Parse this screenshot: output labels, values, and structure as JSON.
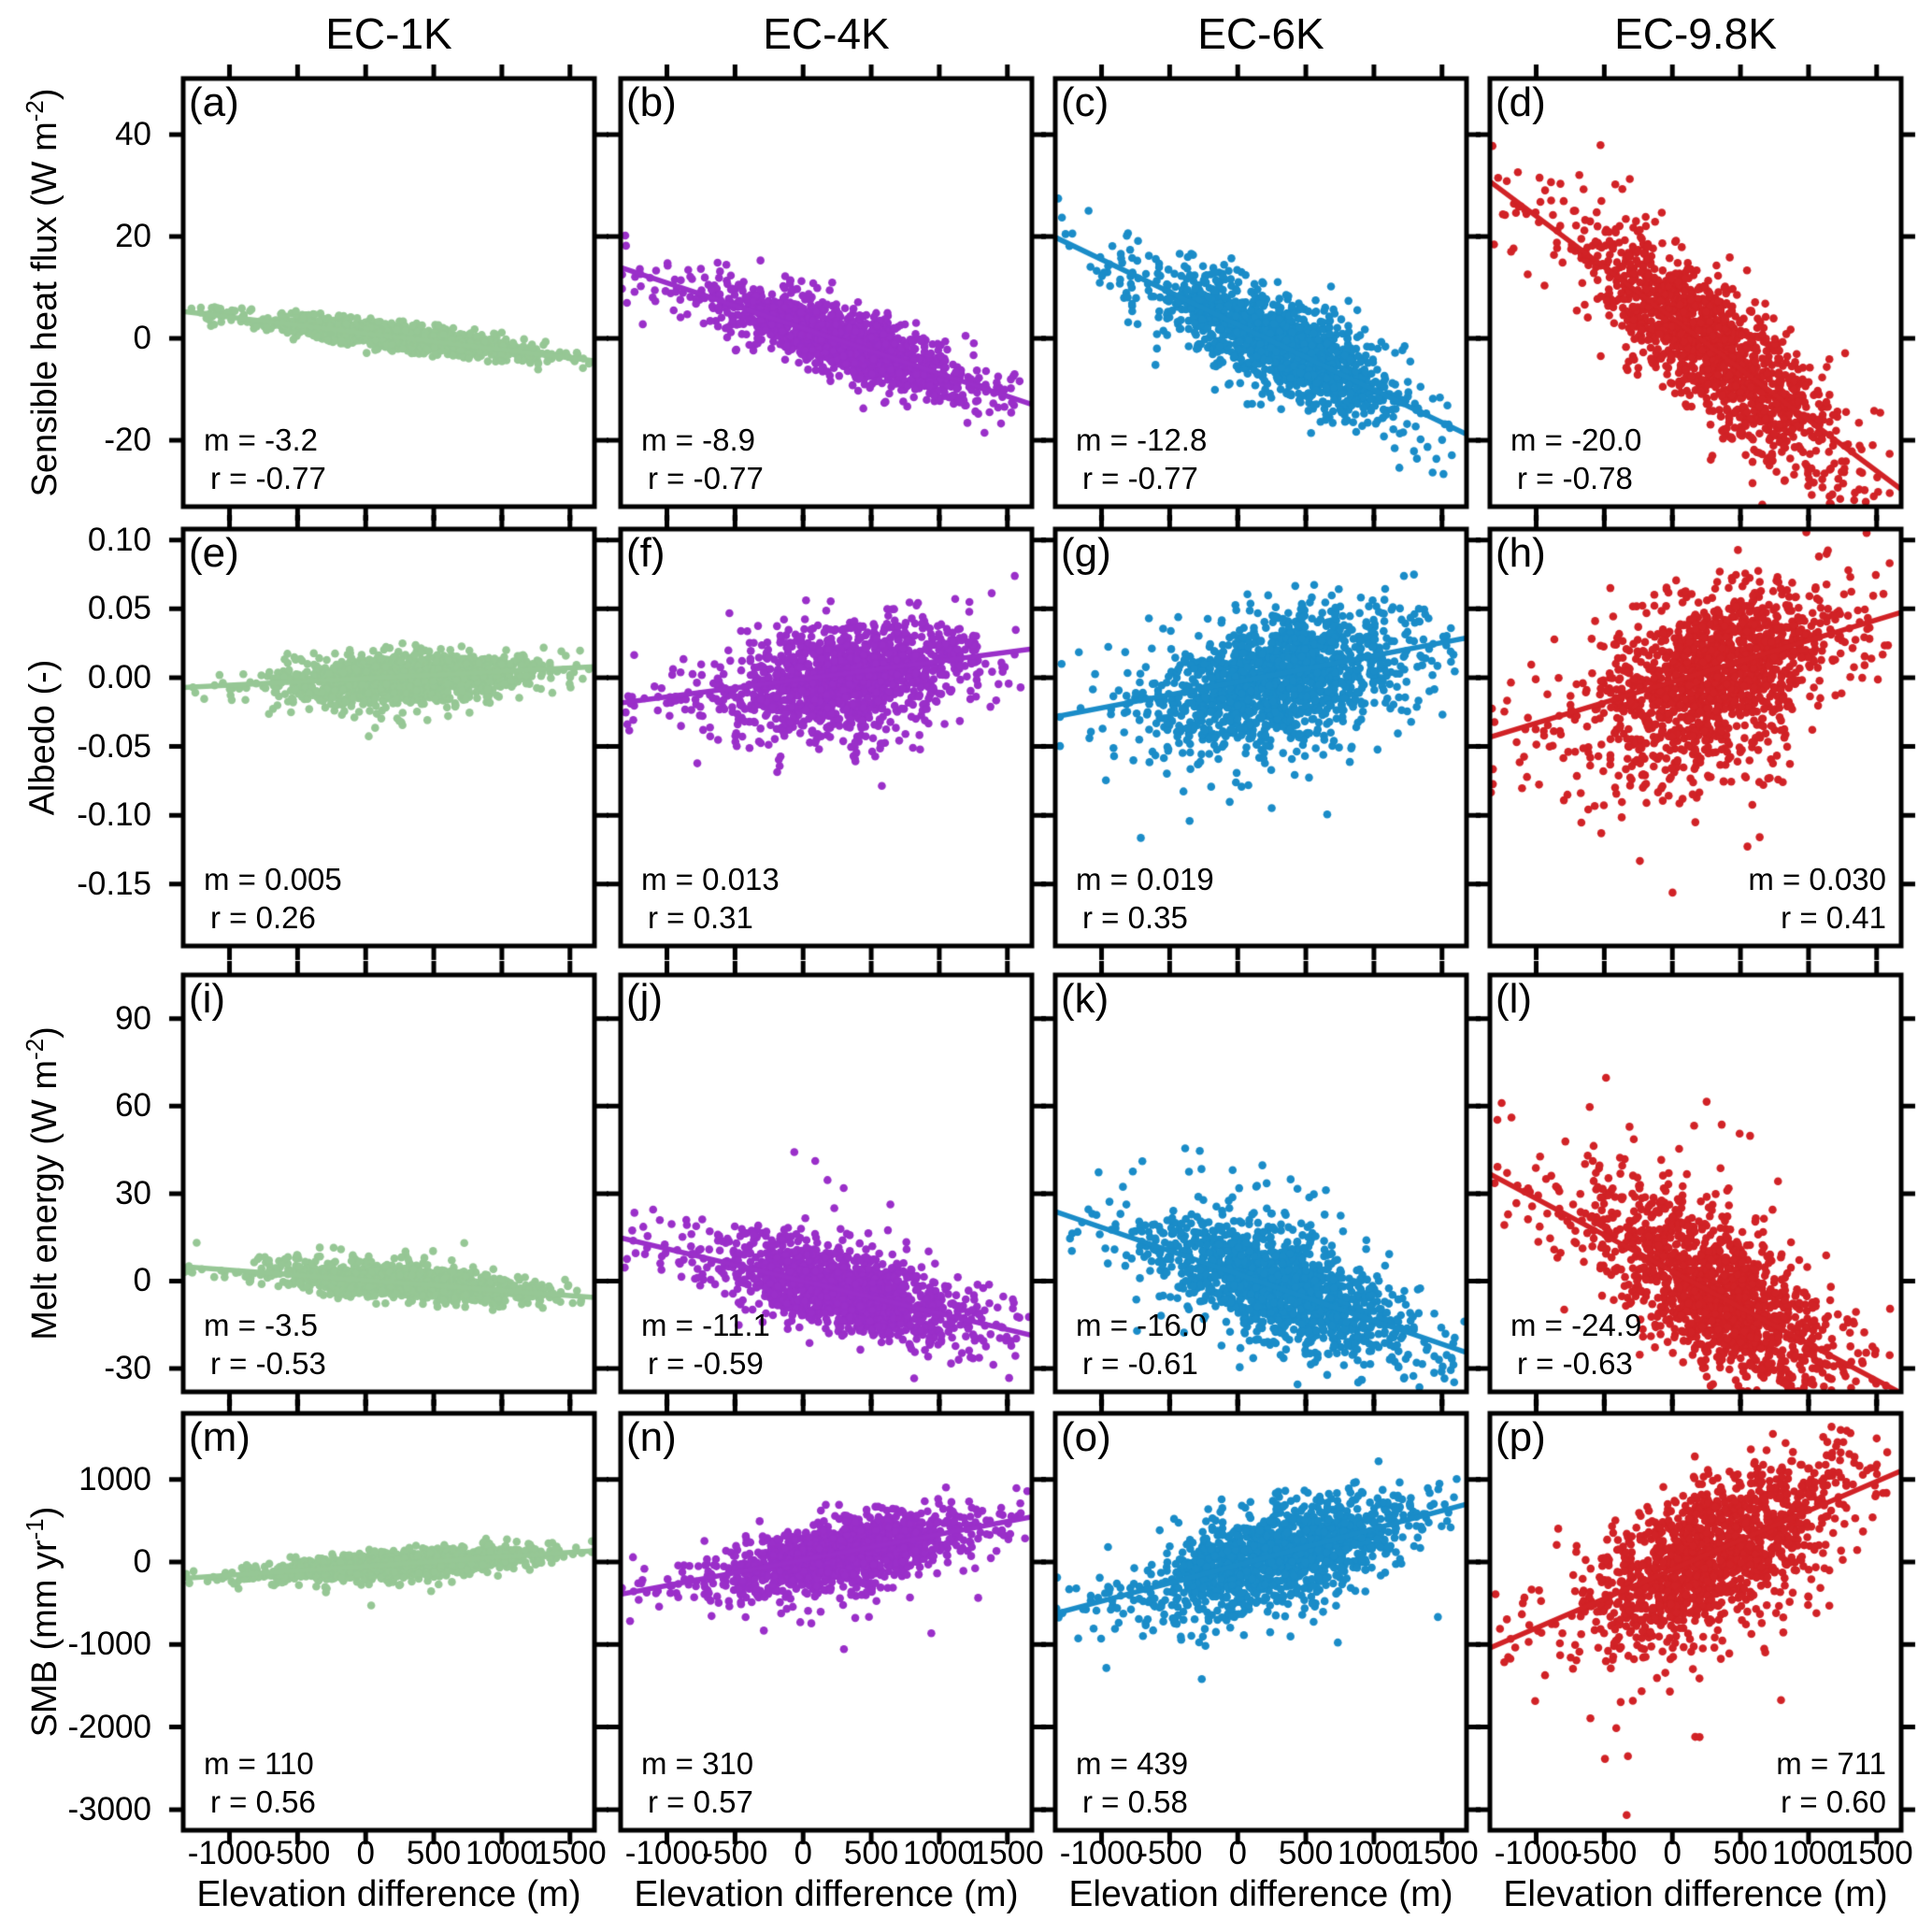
{
  "chart_data": {
    "type": "scatter",
    "grid": "4 rows x 4 columns",
    "x_axis": {
      "label": "Elevation difference (m)",
      "range": [
        -1340,
        1680
      ],
      "ticks": [
        -1000,
        -500,
        0,
        500,
        1000,
        1500
      ],
      "tick_labels": [
        "-1000",
        "-500",
        "0",
        "500",
        "1000",
        "1500"
      ]
    },
    "columns": [
      {
        "title": "EC-1K",
        "color": "#96c795"
      },
      {
        "title": "EC-4K",
        "color": "#9a2fc9"
      },
      {
        "title": "EC-6K",
        "color": "#1a8cc8"
      },
      {
        "title": "EC-9.8K",
        "color": "#d12226"
      }
    ],
    "rows": [
      {
        "ylabel": "Sensible heat flux (W m^-2)",
        "ylabel_pre": "Sensible heat flux (W m",
        "ylabel_sup": "-2",
        "ylabel_post": ")",
        "range": [
          -33,
          51
        ],
        "ticks": [
          40,
          20,
          0,
          -20
        ],
        "tick_labels": [
          "40",
          "20",
          "0",
          "-20"
        ]
      },
      {
        "ylabel": "Albedo (-)",
        "ylabel_pre": "Albedo (-)",
        "ylabel_sup": "",
        "ylabel_post": "",
        "range": [
          -0.195,
          0.108
        ],
        "ticks": [
          0.1,
          0.05,
          0.0,
          -0.05,
          -0.1,
          -0.15
        ],
        "tick_labels": [
          "0.10",
          "0.05",
          "0.00",
          "-0.05",
          "-0.10",
          "-0.15"
        ]
      },
      {
        "ylabel": "Melt energy (W m^-2)",
        "ylabel_pre": "Melt energy (W m",
        "ylabel_sup": "-2",
        "ylabel_post": ")",
        "range": [
          -38,
          105
        ],
        "ticks": [
          90,
          60,
          30,
          0,
          -30
        ],
        "tick_labels": [
          "90",
          "60",
          "30",
          "0",
          "-30"
        ]
      },
      {
        "ylabel": "SMB (mm yr^-1)",
        "ylabel_pre": "SMB (mm yr",
        "ylabel_sup": "-1",
        "ylabel_post": ")",
        "range": [
          -3250,
          1800
        ],
        "ticks": [
          1000,
          0,
          -1000,
          -2000,
          -3000
        ],
        "tick_labels": [
          "1000",
          "0",
          "-1000",
          "-2000",
          "-3000"
        ]
      }
    ],
    "panels": [
      {
        "label": "(a)",
        "row": 0,
        "col": 0,
        "m": -3.2,
        "r": -0.77,
        "m_text": "m = -3.2",
        "r_text": "r = -0.77",
        "intercept": 1.0,
        "anno_align": "left"
      },
      {
        "label": "(b)",
        "row": 0,
        "col": 1,
        "m": -8.9,
        "r": -0.77,
        "m_text": "m = -8.9",
        "r_text": "r = -0.77",
        "intercept": 2.0,
        "anno_align": "left"
      },
      {
        "label": "(c)",
        "row": 0,
        "col": 2,
        "m": -12.8,
        "r": -0.77,
        "m_text": "m = -12.8",
        "r_text": "r = -0.77",
        "intercept": 2.7,
        "anno_align": "left"
      },
      {
        "label": "(d)",
        "row": 0,
        "col": 3,
        "m": -20.0,
        "r": -0.78,
        "m_text": "m = -20.0",
        "r_text": "r = -0.78",
        "intercept": 4.0,
        "anno_align": "left"
      },
      {
        "label": "(e)",
        "row": 1,
        "col": 0,
        "m": 0.005,
        "r": 0.26,
        "m_text": "m = 0.005",
        "r_text": "r = 0.26",
        "intercept": -0.0005,
        "anno_align": "left"
      },
      {
        "label": "(f)",
        "row": 1,
        "col": 1,
        "m": 0.013,
        "r": 0.31,
        "m_text": "m = 0.013",
        "r_text": "r = 0.31",
        "intercept": -0.001,
        "anno_align": "left"
      },
      {
        "label": "(g)",
        "row": 1,
        "col": 2,
        "m": 0.019,
        "r": 0.35,
        "m_text": "m = 0.019",
        "r_text": "r = 0.35",
        "intercept": -0.003,
        "anno_align": "left"
      },
      {
        "label": "(h)",
        "row": 1,
        "col": 3,
        "m": 0.03,
        "r": 0.41,
        "m_text": "m = 0.030",
        "r_text": "r = 0.41",
        "intercept": -0.003,
        "anno_align": "right"
      },
      {
        "label": "(i)",
        "row": 2,
        "col": 0,
        "m": -3.5,
        "r": -0.53,
        "m_text": "m = -3.5",
        "r_text": "r = -0.53",
        "intercept": 0.3,
        "anno_align": "left"
      },
      {
        "label": "(j)",
        "row": 2,
        "col": 1,
        "m": -11.1,
        "r": -0.59,
        "m_text": "m = -11.1",
        "r_text": "r = -0.59",
        "intercept": 0.0,
        "anno_align": "left"
      },
      {
        "label": "(k)",
        "row": 2,
        "col": 2,
        "m": -16.0,
        "r": -0.61,
        "m_text": "m = -16.0",
        "r_text": "r = -0.61",
        "intercept": 2.4,
        "anno_align": "left"
      },
      {
        "label": "(l)",
        "row": 2,
        "col": 3,
        "m": -24.9,
        "r": -0.63,
        "m_text": "m = -24.9",
        "r_text": "r = -0.63",
        "intercept": 3.4,
        "anno_align": "left"
      },
      {
        "label": "(m)",
        "row": 3,
        "col": 0,
        "m": 110,
        "r": 0.56,
        "m_text": "m = 110",
        "r_text": "r = 0.56",
        "intercept": -50,
        "anno_align": "left"
      },
      {
        "label": "(n)",
        "row": 3,
        "col": 1,
        "m": 310,
        "r": 0.57,
        "m_text": "m = 310",
        "r_text": "r = 0.57",
        "intercept": 25,
        "anno_align": "left"
      },
      {
        "label": "(o)",
        "row": 3,
        "col": 2,
        "m": 439,
        "r": 0.58,
        "m_text": "m = 439",
        "r_text": "r = 0.58",
        "intercept": -37,
        "anno_align": "left"
      },
      {
        "label": "(p)",
        "row": 3,
        "col": 3,
        "m": 711,
        "r": 0.6,
        "m_text": "m = 711",
        "r_text": "r = 0.60",
        "intercept": -90,
        "anno_align": "right"
      }
    ]
  }
}
